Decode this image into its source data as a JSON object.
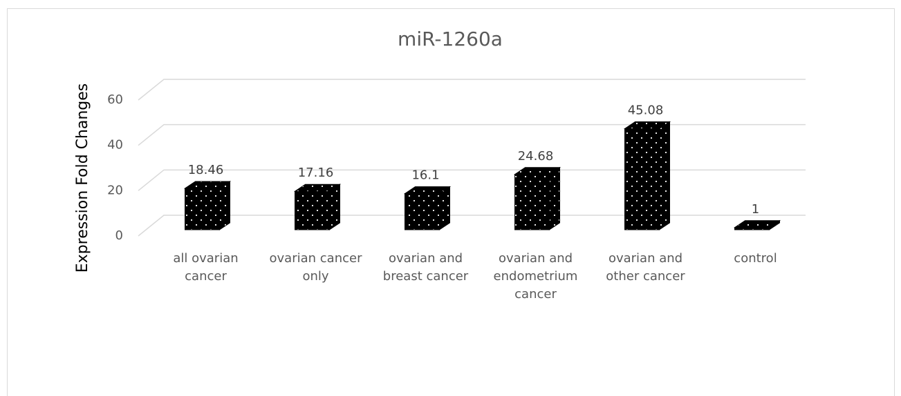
{
  "chart_data": {
    "type": "bar3d",
    "title": "miR-1260a",
    "y_label": "Expression Fold Changes",
    "categories": [
      "all ovarian cancer",
      "ovarian cancer only",
      "ovarian and breast cancer",
      "ovarian and endometrium cancer",
      "ovarian and other cancer",
      "control"
    ],
    "values": [
      18.46,
      17.16,
      16.1,
      24.68,
      45.08,
      1
    ],
    "color": "#000000",
    "ylim": [
      0,
      60
    ],
    "yticks": [
      0,
      20,
      40,
      60
    ],
    "grid": true
  }
}
